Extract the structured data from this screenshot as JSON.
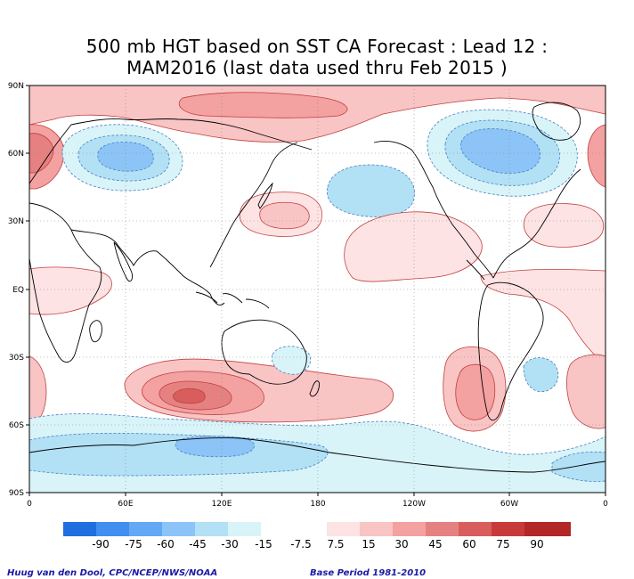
{
  "title_line1": "500 mb HGT based on SST CA Forecast : Lead 12 :",
  "title_line2": "MAM2016 (last data used thru Feb 2015 )",
  "lat_labels": [
    "90N",
    "60N",
    "30N",
    "EQ",
    "30S",
    "60S",
    "90S"
  ],
  "lon_labels": [
    "0",
    "60E",
    "120E",
    "180",
    "120W",
    "60W",
    "0"
  ],
  "colorbar": {
    "labels": [
      "-90",
      "-75",
      "-60",
      "-45",
      "-30",
      "-15",
      "-7.5",
      "7.5",
      "15",
      "30",
      "45",
      "60",
      "75",
      "90"
    ],
    "colors_negative": [
      "#1f6fe0",
      "#3f8ef0",
      "#62a8f5",
      "#8cc4f7",
      "#b2e0f5",
      "#d8f4f8"
    ],
    "colors_positive": [
      "#fde3e3",
      "#f9c4c4",
      "#f3a1a1",
      "#e58181",
      "#d85e5e",
      "#c83a3a",
      "#b32727"
    ],
    "neutral_color": "#ffffff"
  },
  "footer_left": "Huug van den Dool, CPC/NCEP/NWS/NOAA",
  "footer_right": "Base Period 1981-2010"
}
